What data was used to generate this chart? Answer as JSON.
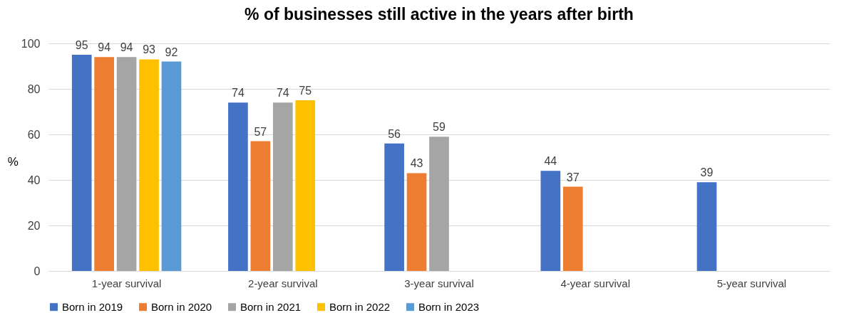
{
  "chart_data": {
    "type": "bar",
    "title": "% of businesses still active in the years after birth",
    "ylabel": "%",
    "categories": [
      "1-year survival",
      "2-year survival",
      "3-year survival",
      "4-year survival",
      "5-year survival"
    ],
    "series": [
      {
        "name": "Born in 2019",
        "color": "#4472c4",
        "values": [
          95,
          74,
          56,
          44,
          39
        ]
      },
      {
        "name": "Born in 2020",
        "color": "#ed7d31",
        "values": [
          94,
          57,
          43,
          37,
          null
        ]
      },
      {
        "name": "Born in 2021",
        "color": "#a5a5a5",
        "values": [
          94,
          74,
          59,
          null,
          null
        ]
      },
      {
        "name": "Born in 2022",
        "color": "#ffc000",
        "values": [
          93,
          75,
          null,
          null,
          null
        ]
      },
      {
        "name": "Born in 2023",
        "color": "#5b9bd5",
        "values": [
          92,
          null,
          null,
          null,
          null
        ]
      }
    ],
    "ylim": [
      0,
      100
    ],
    "yticks": [
      0,
      20,
      40,
      60,
      80,
      100
    ],
    "grid": "y",
    "legend": "bottom",
    "data_labels": true
  }
}
